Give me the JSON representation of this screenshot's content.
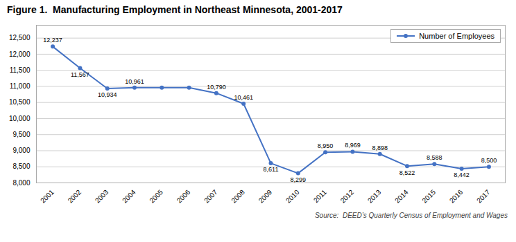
{
  "chart_data": {
    "type": "line",
    "title": "Figure 1.  Manufacturing Employment in Northeast Minnesota, 2001-2017",
    "caption": "Source:  DEED’s Quarterly Census of Employment and Wages",
    "x": [
      2001,
      2002,
      2003,
      2004,
      2005,
      2006,
      2007,
      2008,
      2009,
      2010,
      2011,
      2012,
      2013,
      2014,
      2015,
      2016,
      2017
    ],
    "series": [
      {
        "name": "Number of Employees",
        "color": "#4472C4",
        "marker": "circle",
        "values": [
          12237,
          11567,
          10934,
          10961,
          10961,
          10961,
          10790,
          10461,
          8611,
          8299,
          8950,
          8969,
          8898,
          8522,
          8588,
          8442,
          8500
        ],
        "value_labels": [
          "12,237",
          "11,567",
          "10,934",
          "10,961",
          null,
          null,
          "10,790",
          "10,461",
          "8,611",
          "8,299",
          "8,950",
          "8,969",
          "8,898",
          "8,522",
          "8,588",
          "8,442",
          "8,500"
        ]
      }
    ],
    "xlim": [
      2000.4,
      2017.6
    ],
    "xticks": [
      2001,
      2002,
      2003,
      2004,
      2005,
      2006,
      2007,
      2008,
      2009,
      2010,
      2011,
      2012,
      2013,
      2014,
      2015,
      2016,
      2017
    ],
    "ylim": [
      8000,
      12900
    ],
    "yticks": [
      {
        "value": 8000,
        "label": "8,000"
      },
      {
        "value": 8500,
        "label": "8,500"
      },
      {
        "value": 9000,
        "label": "9,000"
      },
      {
        "value": 9500,
        "label": "9,500"
      },
      {
        "value": 10000,
        "label": "10,000"
      },
      {
        "value": 10500,
        "label": "10,500"
      },
      {
        "value": 11000,
        "label": "11,000"
      },
      {
        "value": 11500,
        "label": "11,500"
      },
      {
        "value": 12000,
        "label": "12,000"
      },
      {
        "value": 12500,
        "label": "12,500"
      }
    ],
    "grid": true,
    "legend": "upper right",
    "data_labels": true
  }
}
